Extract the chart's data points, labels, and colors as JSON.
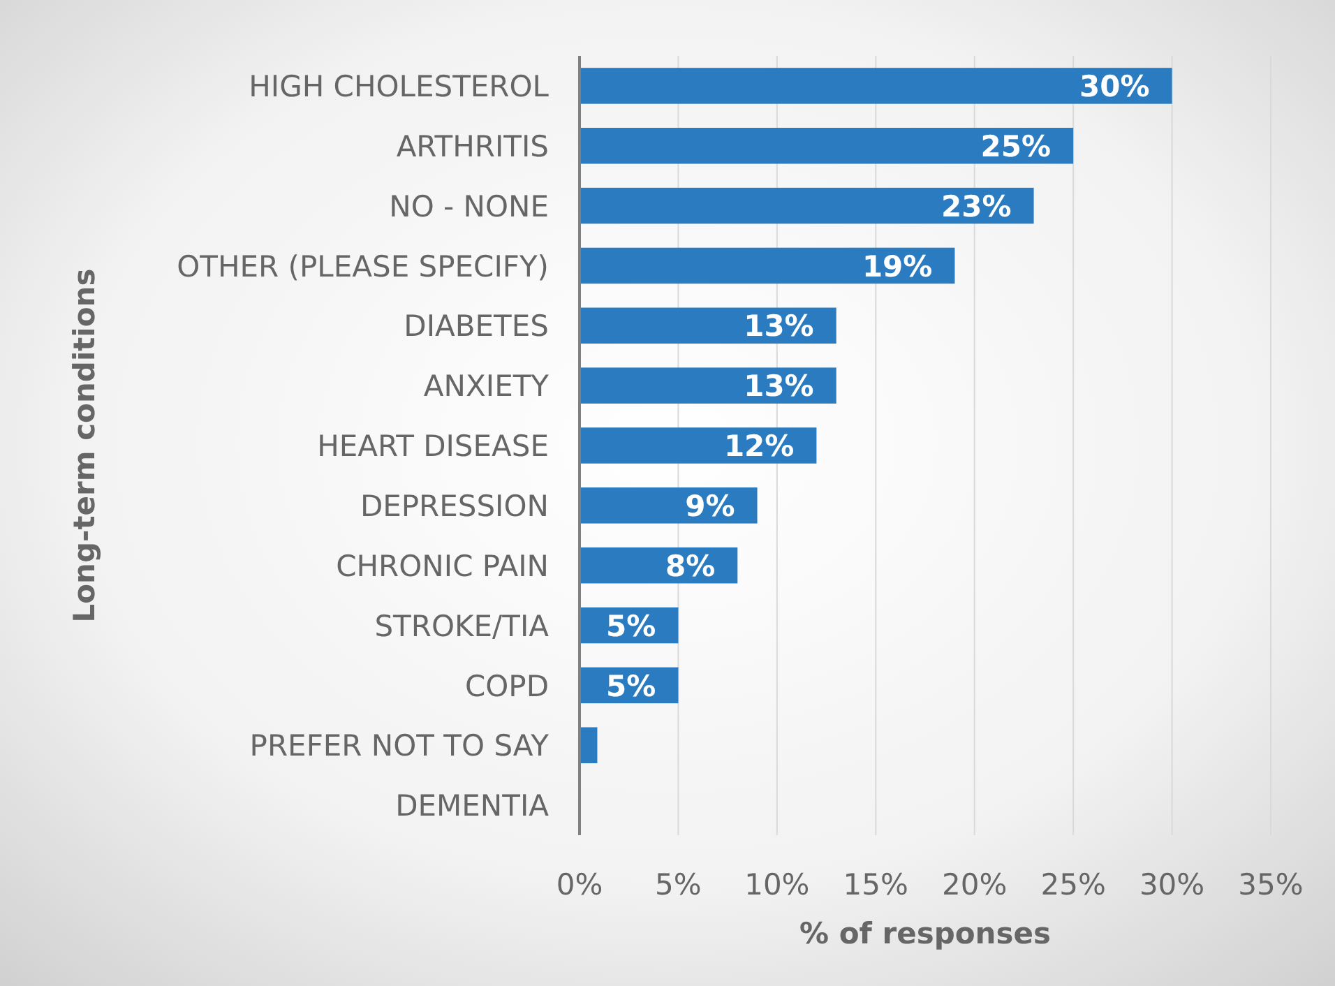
{
  "chart_data": {
    "type": "bar",
    "orientation": "horizontal",
    "xlabel": "% of responses",
    "ylabel": "Long-term conditions",
    "categories": [
      "HIGH CHOLESTEROL",
      "ARTHRITIS",
      "NO - NONE",
      "OTHER (PLEASE SPECIFY)",
      "DIABETES",
      "ANXIETY",
      "HEART DISEASE",
      "DEPRESSION",
      "CHRONIC PAIN",
      "STROKE/TIA",
      "COPD",
      "PREFER NOT TO SAY",
      "DEMENTIA"
    ],
    "values": [
      30,
      25,
      23,
      19,
      13,
      13,
      12,
      9,
      8,
      5,
      5,
      0.9,
      0
    ],
    "value_labels": [
      "30%",
      "25%",
      "23%",
      "19%",
      "13%",
      "13%",
      "12%",
      "9%",
      "8%",
      "5%",
      "5%",
      null,
      null
    ],
    "color": "#2a7bbf",
    "xlim": [
      0,
      35
    ],
    "xticks": [
      {
        "value": 0,
        "label": "0%"
      },
      {
        "value": 5,
        "label": "5%"
      },
      {
        "value": 10,
        "label": "10%"
      },
      {
        "value": 15,
        "label": "15%"
      },
      {
        "value": 20,
        "label": "20%"
      },
      {
        "value": 25,
        "label": "25%"
      },
      {
        "value": 30,
        "label": "30%"
      },
      {
        "value": 35,
        "label": "35%"
      }
    ],
    "grid": "x"
  }
}
